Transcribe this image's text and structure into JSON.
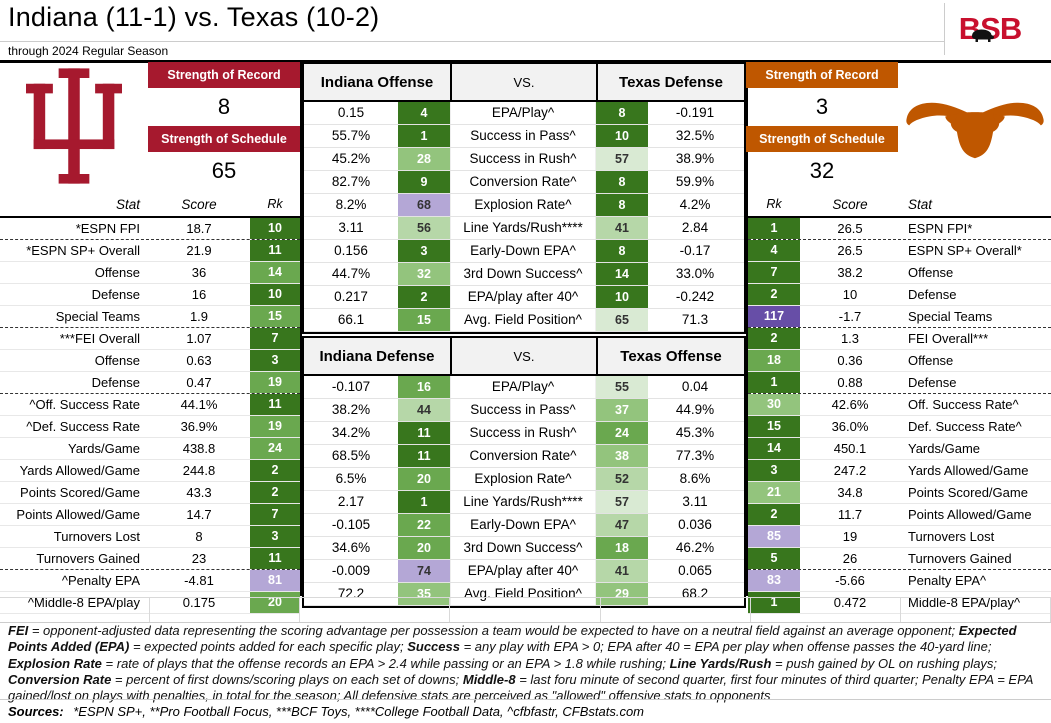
{
  "header": {
    "title": "Indiana (11-1) vs. Texas (10-2)",
    "subtitle": "through 2024 Regular Season",
    "logo_text": "BSB"
  },
  "colors": {
    "indiana_crimson": "#A6192E",
    "texas_orange": "#BF5700",
    "bsb_red": "#C8102E",
    "rank_green_dark": "#38761d",
    "rank_green": "#6aa84f",
    "rank_green_mid": "#93c47d",
    "rank_green_light": "#b6d7a8",
    "rank_green_pale": "#d9ead3",
    "rank_purple_dark": "#674ea7",
    "rank_purple_light": "#b4a7d6"
  },
  "indiana": {
    "sor_label": "Strength of Record",
    "sor_value": "8",
    "sos_label": "Strength of Schedule",
    "sos_value": "65"
  },
  "texas": {
    "sor_label": "Strength of Record",
    "sor_value": "3",
    "sos_label": "Strength of Schedule",
    "sos_value": "32"
  },
  "left_table": {
    "headers": {
      "stat": "Stat",
      "score": "Score",
      "rk": "Rk"
    },
    "rows": [
      {
        "stat": "*ESPN FPI",
        "score": "18.7",
        "rk": "10",
        "c": "g1",
        "sep": true
      },
      {
        "stat": "*ESPN SP+ Overall",
        "score": "21.9",
        "rk": "11",
        "c": "g1"
      },
      {
        "stat": "Offense",
        "score": "36",
        "rk": "14",
        "c": "g2"
      },
      {
        "stat": "Defense",
        "score": "16",
        "rk": "10",
        "c": "g1"
      },
      {
        "stat": "Special Teams",
        "score": "1.9",
        "rk": "15",
        "c": "g2",
        "sep": true
      },
      {
        "stat": "***FEI Overall",
        "score": "1.07",
        "rk": "7",
        "c": "g1"
      },
      {
        "stat": "Offense",
        "score": "0.63",
        "rk": "3",
        "c": "g1"
      },
      {
        "stat": "Defense",
        "score": "0.47",
        "rk": "19",
        "c": "g2",
        "sep": true
      },
      {
        "stat": "^Off. Success Rate",
        "score": "44.1%",
        "rk": "11",
        "c": "g1"
      },
      {
        "stat": "^Def. Success Rate",
        "score": "36.9%",
        "rk": "19",
        "c": "g2"
      },
      {
        "stat": "Yards/Game",
        "score": "438.8",
        "rk": "24",
        "c": "g2"
      },
      {
        "stat": "Yards Allowed/Game",
        "score": "244.8",
        "rk": "2",
        "c": "g1"
      },
      {
        "stat": "Points Scored/Game",
        "score": "43.3",
        "rk": "2",
        "c": "g1"
      },
      {
        "stat": "Points Allowed/Game",
        "score": "14.7",
        "rk": "7",
        "c": "g1"
      },
      {
        "stat": "Turnovers Lost",
        "score": "8",
        "rk": "3",
        "c": "g1"
      },
      {
        "stat": "Turnovers Gained",
        "score": "23",
        "rk": "11",
        "c": "g1",
        "sep": true
      },
      {
        "stat": "^Penalty EPA",
        "score": "-4.81",
        "rk": "81",
        "c": "p3"
      },
      {
        "stat": "^Middle-8 EPA/play",
        "score": "0.175",
        "rk": "20",
        "c": "g2"
      }
    ]
  },
  "right_table": {
    "headers": {
      "rk": "Rk",
      "score": "Score",
      "stat": "Stat"
    },
    "rows": [
      {
        "rk": "1",
        "c": "g1",
        "score": "26.5",
        "stat": "ESPN FPI*",
        "sep": true
      },
      {
        "rk": "4",
        "c": "g1",
        "score": "26.5",
        "stat": "ESPN SP+ Overall*"
      },
      {
        "rk": "7",
        "c": "g1",
        "score": "38.2",
        "stat": "Offense"
      },
      {
        "rk": "2",
        "c": "g1",
        "score": "10",
        "stat": "Defense"
      },
      {
        "rk": "117",
        "c": "p1",
        "score": "-1.7",
        "stat": "Special Teams",
        "sep": true
      },
      {
        "rk": "2",
        "c": "g1",
        "score": "1.3",
        "stat": "FEI Overall***"
      },
      {
        "rk": "18",
        "c": "g2",
        "score": "0.36",
        "stat": "Offense"
      },
      {
        "rk": "1",
        "c": "g1",
        "score": "0.88",
        "stat": "Defense",
        "sep": true
      },
      {
        "rk": "30",
        "c": "g3",
        "score": "42.6%",
        "stat": "Off. Success Rate^"
      },
      {
        "rk": "15",
        "c": "g1",
        "score": "36.0%",
        "stat": "Def. Success Rate^"
      },
      {
        "rk": "14",
        "c": "g1",
        "score": "450.1",
        "stat": "Yards/Game"
      },
      {
        "rk": "3",
        "c": "g1",
        "score": "247.2",
        "stat": "Yards Allowed/Game"
      },
      {
        "rk": "21",
        "c": "g3",
        "score": "34.8",
        "stat": "Points Scored/Game"
      },
      {
        "rk": "2",
        "c": "g1",
        "score": "11.7",
        "stat": "Points Allowed/Game"
      },
      {
        "rk": "85",
        "c": "p3",
        "score": "19",
        "stat": "Turnovers Lost"
      },
      {
        "rk": "5",
        "c": "g1",
        "score": "26",
        "stat": "Turnovers Gained",
        "sep": true
      },
      {
        "rk": "83",
        "c": "p3",
        "score": "-5.66",
        "stat": "Penalty EPA^"
      },
      {
        "rk": "1",
        "c": "g1",
        "score": "0.472",
        "stat": "Middle-8 EPA/play^"
      }
    ]
  },
  "matchups": [
    {
      "left_title": "Indiana Offense",
      "vs_label": "VS.",
      "right_title": "Texas Defense",
      "rows": [
        {
          "ls": "0.15",
          "lr": "4",
          "lc": "g1",
          "stat": "EPA/Play^",
          "rr": "8",
          "rc": "g1",
          "rs": "-0.191"
        },
        {
          "ls": "55.7%",
          "lr": "1",
          "lc": "g1",
          "stat": "Success in Pass^",
          "rr": "10",
          "rc": "g1",
          "rs": "32.5%"
        },
        {
          "ls": "45.2%",
          "lr": "28",
          "lc": "g3",
          "stat": "Success in Rush^",
          "rr": "57",
          "rc": "g5",
          "rs": "38.9%"
        },
        {
          "ls": "82.7%",
          "lr": "9",
          "lc": "g1",
          "stat": "Conversion Rate^",
          "rr": "8",
          "rc": "g1",
          "rs": "59.9%"
        },
        {
          "ls": "8.2%",
          "lr": "68",
          "lc": "p4",
          "stat": "Explosion Rate^",
          "rr": "8",
          "rc": "g1",
          "rs": "4.2%"
        },
        {
          "ls": "3.11",
          "lr": "56",
          "lc": "g4",
          "stat": "Line Yards/Rush****",
          "rr": "41",
          "rc": "g4",
          "rs": "2.84"
        },
        {
          "ls": "0.156",
          "lr": "3",
          "lc": "g1",
          "stat": "Early-Down EPA^",
          "rr": "8",
          "rc": "g1",
          "rs": "-0.17"
        },
        {
          "ls": "44.7%",
          "lr": "32",
          "lc": "g3",
          "stat": "3rd Down Success^",
          "rr": "14",
          "rc": "g1",
          "rs": "33.0%"
        },
        {
          "ls": "0.217",
          "lr": "2",
          "lc": "g1",
          "stat": "EPA/play after 40^",
          "rr": "10",
          "rc": "g1",
          "rs": "-0.242"
        },
        {
          "ls": "66.1",
          "lr": "15",
          "lc": "g2",
          "stat": "Avg. Field Position^",
          "rr": "65",
          "rc": "g5",
          "rs": "71.3"
        }
      ]
    },
    {
      "left_title": "Indiana Defense",
      "vs_label": "VS.",
      "right_title": "Texas Offense",
      "rows": [
        {
          "ls": "-0.107",
          "lr": "16",
          "lc": "g2",
          "stat": "EPA/Play^",
          "rr": "55",
          "rc": "g5",
          "rs": "0.04"
        },
        {
          "ls": "38.2%",
          "lr": "44",
          "lc": "g4",
          "stat": "Success in Pass^",
          "rr": "37",
          "rc": "g3",
          "rs": "44.9%"
        },
        {
          "ls": "34.2%",
          "lr": "11",
          "lc": "g1",
          "stat": "Success in Rush^",
          "rr": "24",
          "rc": "g2",
          "rs": "45.3%"
        },
        {
          "ls": "68.5%",
          "lr": "11",
          "lc": "g1",
          "stat": "Conversion Rate^",
          "rr": "38",
          "rc": "g3",
          "rs": "77.3%"
        },
        {
          "ls": "6.5%",
          "lr": "20",
          "lc": "g2",
          "stat": "Explosion Rate^",
          "rr": "52",
          "rc": "g4",
          "rs": "8.6%"
        },
        {
          "ls": "2.17",
          "lr": "1",
          "lc": "g1",
          "stat": "Line Yards/Rush****",
          "rr": "57",
          "rc": "g5",
          "rs": "3.11"
        },
        {
          "ls": "-0.105",
          "lr": "22",
          "lc": "g2",
          "stat": "Early-Down EPA^",
          "rr": "47",
          "rc": "g4",
          "rs": "0.036"
        },
        {
          "ls": "34.6%",
          "lr": "20",
          "lc": "g2",
          "stat": "3rd Down Success^",
          "rr": "18",
          "rc": "g2",
          "rs": "46.2%"
        },
        {
          "ls": "-0.009",
          "lr": "74",
          "lc": "p4",
          "stat": "EPA/play after 40^",
          "rr": "41",
          "rc": "g4",
          "rs": "0.065"
        },
        {
          "ls": "72.2",
          "lr": "35",
          "lc": "g3",
          "stat": "Avg. Field Position^",
          "rr": "29",
          "rc": "g3",
          "rs": "68.2"
        }
      ]
    }
  ],
  "footnote": {
    "segments": [
      {
        "bold": true,
        "text": "FEI"
      },
      {
        "bold": false,
        "text": " = opponent-adjusted data representing the scoring advantage per possession a team would be expected to have on a neutral field against an average opponent; "
      },
      {
        "bold": true,
        "text": "Expected Points Added (EPA)"
      },
      {
        "bold": false,
        "text": " = expected points added for each specific play; "
      },
      {
        "bold": true,
        "text": "Success"
      },
      {
        "bold": false,
        "text": " = any play with EPA > 0; EPA after 40 = EPA per play when offense passes the 40-yard line; "
      },
      {
        "bold": true,
        "text": "Explosion Rate"
      },
      {
        "bold": false,
        "text": " = rate of plays that the offense records an EPA > 2.4 while passing or an EPA > 1.8 while rushing; "
      },
      {
        "bold": true,
        "text": "Line Yards/Rush"
      },
      {
        "bold": false,
        "text": " = push gained by OL on rushing plays; "
      },
      {
        "bold": true,
        "text": "Conversion Rate"
      },
      {
        "bold": false,
        "text": " = percent of first downs/scoring plays on each set of downs; "
      },
      {
        "bold": true,
        "text": "Middle-8"
      },
      {
        "bold": false,
        "text": " = last foru minute of second quarter, first four minutes of third quarter; Penalty EPA = EPA gained/lost on plays with penalties, in total for the season; All defensive stats are perceived as \"allowed\" offensive stats to opponents"
      }
    ]
  },
  "sources": {
    "label": "Sources:",
    "text": " *ESPN SP+, **Pro Football Focus, ***BCF Toys, ****College Football Data, ^cfbfastr, CFBstats.com"
  },
  "bottom_grid_cells": 7
}
